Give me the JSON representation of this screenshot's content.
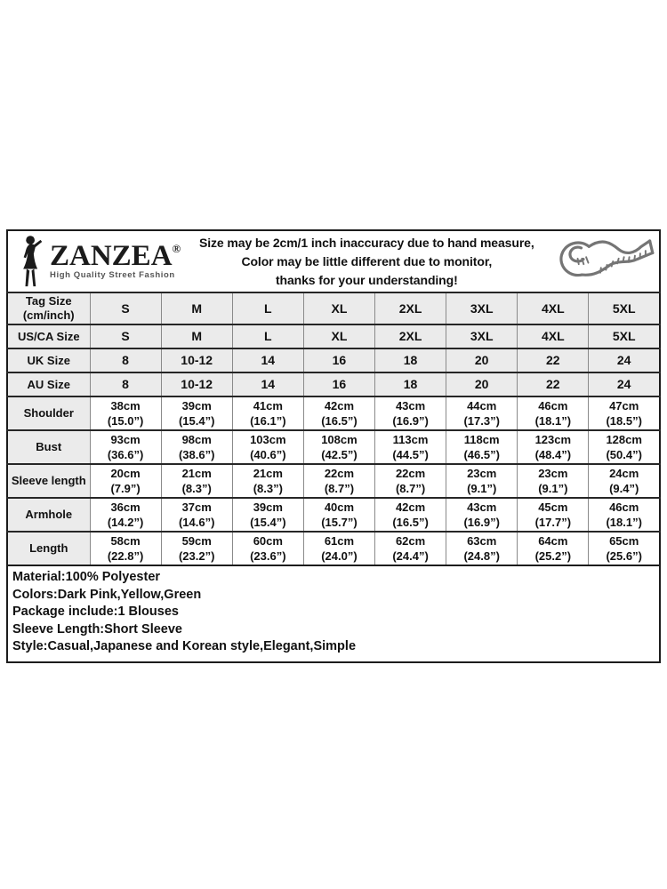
{
  "header": {
    "brand": {
      "name": "ZANZEA",
      "reg": "®",
      "tagline": "High Quality Street Fashion"
    },
    "disclaimer_lines": [
      "Size may be 2cm/1 inch inaccuracy due to hand measure,",
      "Color may be little different due to monitor,",
      "thanks for your understanding!"
    ],
    "icons": {
      "woman_silhouette": "woman-silhouette-icon",
      "measuring_tape": "measuring-tape-icon"
    }
  },
  "size_table": {
    "columns": [
      "S",
      "M",
      "L",
      "XL",
      "2XL",
      "3XL",
      "4XL",
      "5XL"
    ],
    "rows": [
      {
        "label": [
          "Tag Size",
          "(cm/inch)"
        ],
        "shaded": true,
        "values": [
          [
            "S"
          ],
          [
            "M"
          ],
          [
            "L"
          ],
          [
            "XL"
          ],
          [
            "2XL"
          ],
          [
            "3XL"
          ],
          [
            "4XL"
          ],
          [
            "5XL"
          ]
        ]
      },
      {
        "label": [
          "US/CA Size"
        ],
        "shaded": true,
        "values": [
          [
            "S"
          ],
          [
            "M"
          ],
          [
            "L"
          ],
          [
            "XL"
          ],
          [
            "2XL"
          ],
          [
            "3XL"
          ],
          [
            "4XL"
          ],
          [
            "5XL"
          ]
        ]
      },
      {
        "label": [
          "UK Size"
        ],
        "shaded": true,
        "values": [
          [
            "8"
          ],
          [
            "10-12"
          ],
          [
            "14"
          ],
          [
            "16"
          ],
          [
            "18"
          ],
          [
            "20"
          ],
          [
            "22"
          ],
          [
            "24"
          ]
        ]
      },
      {
        "label": [
          "AU Size"
        ],
        "shaded": true,
        "values": [
          [
            "8"
          ],
          [
            "10-12"
          ],
          [
            "14"
          ],
          [
            "16"
          ],
          [
            "18"
          ],
          [
            "20"
          ],
          [
            "22"
          ],
          [
            "24"
          ]
        ]
      },
      {
        "label": [
          "Shoulder"
        ],
        "shaded": false,
        "values": [
          [
            "38cm",
            "(15.0”)"
          ],
          [
            "39cm",
            "(15.4”)"
          ],
          [
            "41cm",
            "(16.1”)"
          ],
          [
            "42cm",
            "(16.5”)"
          ],
          [
            "43cm",
            "(16.9”)"
          ],
          [
            "44cm",
            "(17.3”)"
          ],
          [
            "46cm",
            "(18.1”)"
          ],
          [
            "47cm",
            "(18.5”)"
          ]
        ]
      },
      {
        "label": [
          "Bust"
        ],
        "shaded": false,
        "values": [
          [
            "93cm",
            "(36.6”)"
          ],
          [
            "98cm",
            "(38.6”)"
          ],
          [
            "103cm",
            "(40.6”)"
          ],
          [
            "108cm",
            "(42.5”)"
          ],
          [
            "113cm",
            "(44.5”)"
          ],
          [
            "118cm",
            "(46.5”)"
          ],
          [
            "123cm",
            "(48.4”)"
          ],
          [
            "128cm",
            "(50.4”)"
          ]
        ]
      },
      {
        "label": [
          "Sleeve length"
        ],
        "shaded": false,
        "values": [
          [
            "20cm",
            "(7.9”)"
          ],
          [
            "21cm",
            "(8.3”)"
          ],
          [
            "21cm",
            "(8.3”)"
          ],
          [
            "22cm",
            "(8.7”)"
          ],
          [
            "22cm",
            "(8.7”)"
          ],
          [
            "23cm",
            "(9.1”)"
          ],
          [
            "23cm",
            "(9.1”)"
          ],
          [
            "24cm",
            "(9.4”)"
          ]
        ]
      },
      {
        "label": [
          "Armhole"
        ],
        "shaded": false,
        "values": [
          [
            "36cm",
            "(14.2”)"
          ],
          [
            "37cm",
            "(14.6”)"
          ],
          [
            "39cm",
            "(15.4”)"
          ],
          [
            "40cm",
            "(15.7”)"
          ],
          [
            "42cm",
            "(16.5”)"
          ],
          [
            "43cm",
            "(16.9”)"
          ],
          [
            "45cm",
            "(17.7”)"
          ],
          [
            "46cm",
            "(18.1”)"
          ]
        ]
      },
      {
        "label": [
          "Length"
        ],
        "shaded": false,
        "values": [
          [
            "58cm",
            "(22.8”)"
          ],
          [
            "59cm",
            "(23.2”)"
          ],
          [
            "60cm",
            "(23.6”)"
          ],
          [
            "61cm",
            "(24.0”)"
          ],
          [
            "62cm",
            "(24.4”)"
          ],
          [
            "63cm",
            "(24.8”)"
          ],
          [
            "64cm",
            "(25.2”)"
          ],
          [
            "65cm",
            "(25.6”)"
          ]
        ]
      }
    ]
  },
  "details": {
    "lines": [
      "Material:100% Polyester",
      "Colors:Dark Pink,Yellow,Green",
      "Package include:1 Blouses",
      "Sleeve Length:Short Sleeve",
      "Style:Casual,Japanese and Korean style,Elegant,Simple"
    ]
  },
  "colors": {
    "shaded_cell": "#ebebeb",
    "border_dark": "#1c1c1c",
    "grid_line": "#8a8a8a",
    "tape_gray": "#757575",
    "text": "#111111",
    "background": "#ffffff"
  }
}
